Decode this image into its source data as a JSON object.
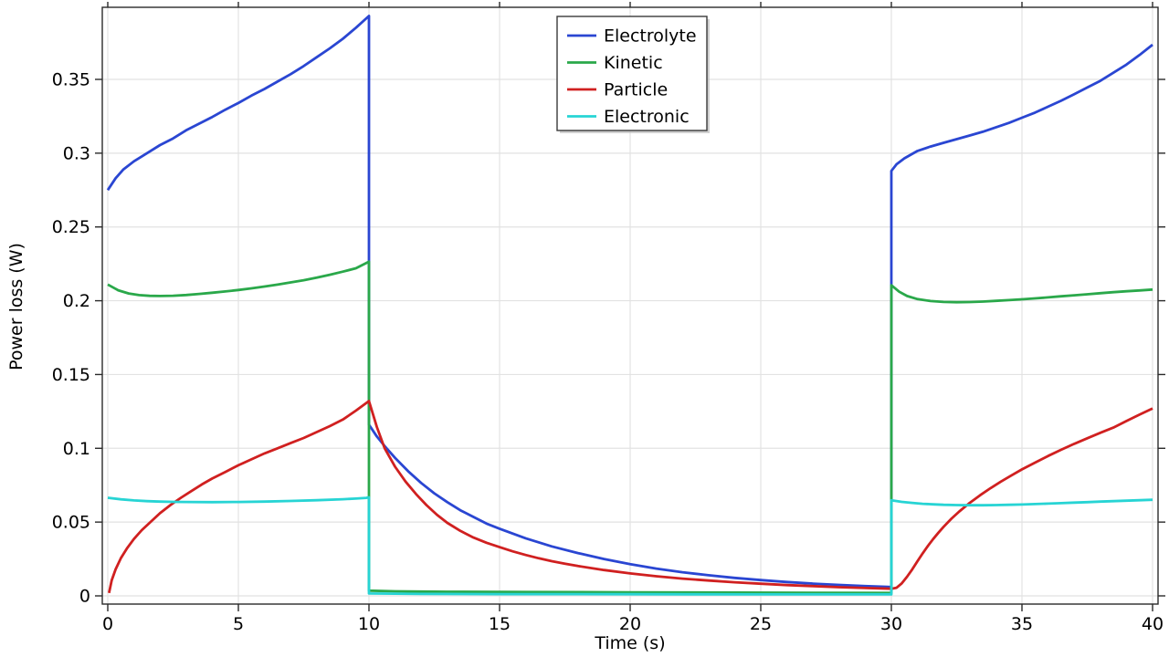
{
  "chart_data": {
    "type": "line",
    "title": "",
    "xlabel": "Time (s)",
    "ylabel": "Power loss (W)",
    "xlim": [
      0,
      40
    ],
    "ylim": [
      0,
      0.4
    ],
    "grid": true,
    "xticks": [
      0,
      5,
      10,
      15,
      20,
      25,
      30,
      35,
      40
    ],
    "xtick_labels": [
      "0",
      "5",
      "10",
      "15",
      "20",
      "25",
      "30",
      "35",
      "40"
    ],
    "yticks": [
      0,
      0.05,
      0.1,
      0.15,
      0.2,
      0.25,
      0.3,
      0.35
    ],
    "ytick_labels": [
      "0",
      "0.05",
      "0.1",
      "0.15",
      "0.2",
      "0.25",
      "0.3",
      "0.35"
    ],
    "legend": {
      "position": "top-center-inside",
      "border": true,
      "background": "#ffffff"
    },
    "series": [
      {
        "name": "Electrolyte",
        "color": "#2a46d2",
        "points": [
          [
            0,
            0.275
          ],
          [
            0.3,
            0.283
          ],
          [
            0.6,
            0.289
          ],
          [
            1,
            0.2945
          ],
          [
            1.5,
            0.3
          ],
          [
            2,
            0.3055
          ],
          [
            2.5,
            0.31
          ],
          [
            3,
            0.3155
          ],
          [
            3.5,
            0.32
          ],
          [
            4,
            0.3245
          ],
          [
            4.5,
            0.3295
          ],
          [
            5,
            0.334
          ],
          [
            5.5,
            0.339
          ],
          [
            6,
            0.3435
          ],
          [
            6.5,
            0.3485
          ],
          [
            7,
            0.3535
          ],
          [
            7.5,
            0.359
          ],
          [
            8,
            0.365
          ],
          [
            8.5,
            0.371
          ],
          [
            9,
            0.3775
          ],
          [
            9.5,
            0.385
          ],
          [
            10,
            0.393
          ],
          [
            10,
            0.116
          ],
          [
            10.3,
            0.108
          ],
          [
            10.6,
            0.1015
          ],
          [
            11,
            0.0935
          ],
          [
            11.5,
            0.0845
          ],
          [
            12,
            0.0765
          ],
          [
            12.5,
            0.0695
          ],
          [
            13,
            0.0635
          ],
          [
            13.5,
            0.058
          ],
          [
            14,
            0.0535
          ],
          [
            14.5,
            0.049
          ],
          [
            15,
            0.0455
          ],
          [
            16,
            0.039
          ],
          [
            17,
            0.0335
          ],
          [
            18,
            0.029
          ],
          [
            19,
            0.025
          ],
          [
            20,
            0.0215
          ],
          [
            21,
            0.0185
          ],
          [
            22,
            0.016
          ],
          [
            23,
            0.014
          ],
          [
            24,
            0.0122
          ],
          [
            25,
            0.0107
          ],
          [
            26,
            0.0094
          ],
          [
            27,
            0.0083
          ],
          [
            28,
            0.0074
          ],
          [
            29,
            0.0066
          ],
          [
            30,
            0.006
          ],
          [
            30,
            0.288
          ],
          [
            30.2,
            0.2925
          ],
          [
            30.5,
            0.2965
          ],
          [
            31,
            0.3015
          ],
          [
            31.5,
            0.3045
          ],
          [
            32,
            0.307
          ],
          [
            32.5,
            0.3095
          ],
          [
            33,
            0.312
          ],
          [
            33.5,
            0.3145
          ],
          [
            34,
            0.3175
          ],
          [
            34.5,
            0.3205
          ],
          [
            35,
            0.324
          ],
          [
            35.5,
            0.3275
          ],
          [
            36,
            0.3315
          ],
          [
            36.5,
            0.3355
          ],
          [
            37,
            0.34
          ],
          [
            37.5,
            0.3445
          ],
          [
            38,
            0.349
          ],
          [
            38.5,
            0.3545
          ],
          [
            39,
            0.36
          ],
          [
            39.5,
            0.3665
          ],
          [
            40,
            0.3735
          ]
        ]
      },
      {
        "name": "Kinetic",
        "color": "#2aa84a",
        "points": [
          [
            0,
            0.211
          ],
          [
            0.4,
            0.2071
          ],
          [
            0.8,
            0.2049
          ],
          [
            1.2,
            0.2038
          ],
          [
            1.6,
            0.2033
          ],
          [
            2,
            0.2032
          ],
          [
            2.5,
            0.2034
          ],
          [
            3,
            0.2039
          ],
          [
            3.5,
            0.2046
          ],
          [
            4,
            0.2054
          ],
          [
            4.5,
            0.2063
          ],
          [
            5,
            0.2073
          ],
          [
            5.5,
            0.2084
          ],
          [
            6,
            0.2096
          ],
          [
            6.5,
            0.2109
          ],
          [
            7,
            0.2124
          ],
          [
            7.5,
            0.2139
          ],
          [
            8,
            0.2156
          ],
          [
            8.5,
            0.2176
          ],
          [
            9,
            0.2197
          ],
          [
            9.5,
            0.222
          ],
          [
            10,
            0.2265
          ],
          [
            10,
            0.0035
          ],
          [
            11,
            0.0031
          ],
          [
            13,
            0.0028
          ],
          [
            16,
            0.0026
          ],
          [
            20,
            0.0024
          ],
          [
            24,
            0.0022
          ],
          [
            27,
            0.0021
          ],
          [
            30,
            0.002
          ],
          [
            30,
            0.2105
          ],
          [
            30.3,
            0.2061
          ],
          [
            30.6,
            0.2032
          ],
          [
            31,
            0.2011
          ],
          [
            31.5,
            0.1998
          ],
          [
            32,
            0.1992
          ],
          [
            32.5,
            0.199
          ],
          [
            33,
            0.1991
          ],
          [
            33.5,
            0.1994
          ],
          [
            34,
            0.1999
          ],
          [
            34.5,
            0.2004
          ],
          [
            35,
            0.201
          ],
          [
            35.5,
            0.2016
          ],
          [
            36,
            0.2023
          ],
          [
            36.5,
            0.203
          ],
          [
            37,
            0.2037
          ],
          [
            37.5,
            0.2044
          ],
          [
            38,
            0.2051
          ],
          [
            38.5,
            0.2058
          ],
          [
            39,
            0.2064
          ],
          [
            39.5,
            0.207
          ],
          [
            40,
            0.2076
          ]
        ]
      },
      {
        "name": "Particle",
        "color": "#d02020",
        "points": [
          [
            0.05,
            0.002
          ],
          [
            0.15,
            0.0105
          ],
          [
            0.3,
            0.018
          ],
          [
            0.5,
            0.0255
          ],
          [
            0.75,
            0.0325
          ],
          [
            1,
            0.0385
          ],
          [
            1.3,
            0.0445
          ],
          [
            1.6,
            0.0495
          ],
          [
            2,
            0.056
          ],
          [
            2.4,
            0.0615
          ],
          [
            2.8,
            0.0665
          ],
          [
            3.2,
            0.071
          ],
          [
            3.6,
            0.0755
          ],
          [
            4,
            0.0795
          ],
          [
            4.5,
            0.084
          ],
          [
            5,
            0.0885
          ],
          [
            5.5,
            0.0925
          ],
          [
            6,
            0.0965
          ],
          [
            6.5,
            0.1
          ],
          [
            7,
            0.1035
          ],
          [
            7.5,
            0.107
          ],
          [
            8,
            0.111
          ],
          [
            8.5,
            0.115
          ],
          [
            9,
            0.1195
          ],
          [
            9.5,
            0.1255
          ],
          [
            10,
            0.132
          ],
          [
            10.3,
            0.1145
          ],
          [
            10.6,
            0.1
          ],
          [
            11,
            0.0875
          ],
          [
            11.4,
            0.0775
          ],
          [
            11.8,
            0.069
          ],
          [
            12.2,
            0.0615
          ],
          [
            12.6,
            0.055
          ],
          [
            13,
            0.0495
          ],
          [
            13.5,
            0.044
          ],
          [
            14,
            0.0395
          ],
          [
            14.5,
            0.036
          ],
          [
            15,
            0.033
          ],
          [
            15.5,
            0.0302
          ],
          [
            16,
            0.0277
          ],
          [
            16.5,
            0.0255
          ],
          [
            17,
            0.0235
          ],
          [
            17.5,
            0.0218
          ],
          [
            18,
            0.0202
          ],
          [
            19,
            0.0175
          ],
          [
            20,
            0.0152
          ],
          [
            21,
            0.0133
          ],
          [
            22,
            0.0117
          ],
          [
            23,
            0.0104
          ],
          [
            24,
            0.0092
          ],
          [
            25,
            0.0082
          ],
          [
            26,
            0.0073
          ],
          [
            27,
            0.0066
          ],
          [
            28,
            0.0059
          ],
          [
            29,
            0.0053
          ],
          [
            30,
            0.0048
          ],
          [
            30.2,
            0.0055
          ],
          [
            30.4,
            0.0085
          ],
          [
            30.6,
            0.013
          ],
          [
            30.8,
            0.018
          ],
          [
            31,
            0.0235
          ],
          [
            31.2,
            0.0288
          ],
          [
            31.4,
            0.0338
          ],
          [
            31.6,
            0.0385
          ],
          [
            31.8,
            0.0428
          ],
          [
            32,
            0.0468
          ],
          [
            32.3,
            0.0523
          ],
          [
            32.6,
            0.0572
          ],
          [
            33,
            0.063
          ],
          [
            33.4,
            0.0682
          ],
          [
            33.8,
            0.073
          ],
          [
            34.2,
            0.0775
          ],
          [
            34.6,
            0.0817
          ],
          [
            35,
            0.0857
          ],
          [
            35.5,
            0.0903
          ],
          [
            36,
            0.0948
          ],
          [
            36.5,
            0.099
          ],
          [
            37,
            0.103
          ],
          [
            37.5,
            0.1068
          ],
          [
            38,
            0.1105
          ],
          [
            38.5,
            0.114
          ],
          [
            39,
            0.1185
          ],
          [
            39.5,
            0.1228
          ],
          [
            40,
            0.127
          ]
        ]
      },
      {
        "name": "Electronic",
        "color": "#27d4d4",
        "points": [
          [
            0,
            0.0665
          ],
          [
            0.5,
            0.0654
          ],
          [
            1,
            0.0647
          ],
          [
            1.5,
            0.0642
          ],
          [
            2,
            0.0639
          ],
          [
            2.5,
            0.0637
          ],
          [
            3,
            0.0636
          ],
          [
            4,
            0.0635
          ],
          [
            5,
            0.0636
          ],
          [
            6,
            0.0639
          ],
          [
            7,
            0.0643
          ],
          [
            8,
            0.0648
          ],
          [
            9,
            0.0655
          ],
          [
            9.5,
            0.0659
          ],
          [
            9.9,
            0.0664
          ],
          [
            10,
            0.0668
          ],
          [
            10,
            0.0016
          ],
          [
            12,
            0.0013
          ],
          [
            15,
            0.0012
          ],
          [
            20,
            0.0011
          ],
          [
            25,
            0.001
          ],
          [
            30,
            0.001
          ],
          [
            30,
            0.0648
          ],
          [
            30.4,
            0.0637
          ],
          [
            30.8,
            0.063
          ],
          [
            31.2,
            0.0624
          ],
          [
            31.6,
            0.062
          ],
          [
            32,
            0.0617
          ],
          [
            32.5,
            0.0615
          ],
          [
            33,
            0.0614
          ],
          [
            33.5,
            0.0614
          ],
          [
            34,
            0.0615
          ],
          [
            34.5,
            0.0617
          ],
          [
            35,
            0.0619
          ],
          [
            35.5,
            0.0622
          ],
          [
            36,
            0.0625
          ],
          [
            36.5,
            0.0628
          ],
          [
            37,
            0.0632
          ],
          [
            37.5,
            0.0635
          ],
          [
            38,
            0.0639
          ],
          [
            38.5,
            0.0642
          ],
          [
            39,
            0.0645
          ],
          [
            39.5,
            0.0648
          ],
          [
            40,
            0.0651
          ]
        ]
      }
    ]
  },
  "colors": {
    "background": "#ffffff",
    "grid": "#e2e2e2",
    "frame": "#2a2a2a",
    "text": "#000000",
    "legend_border": "#3a3a3a",
    "legend_shadow": "#bdbdbd"
  }
}
